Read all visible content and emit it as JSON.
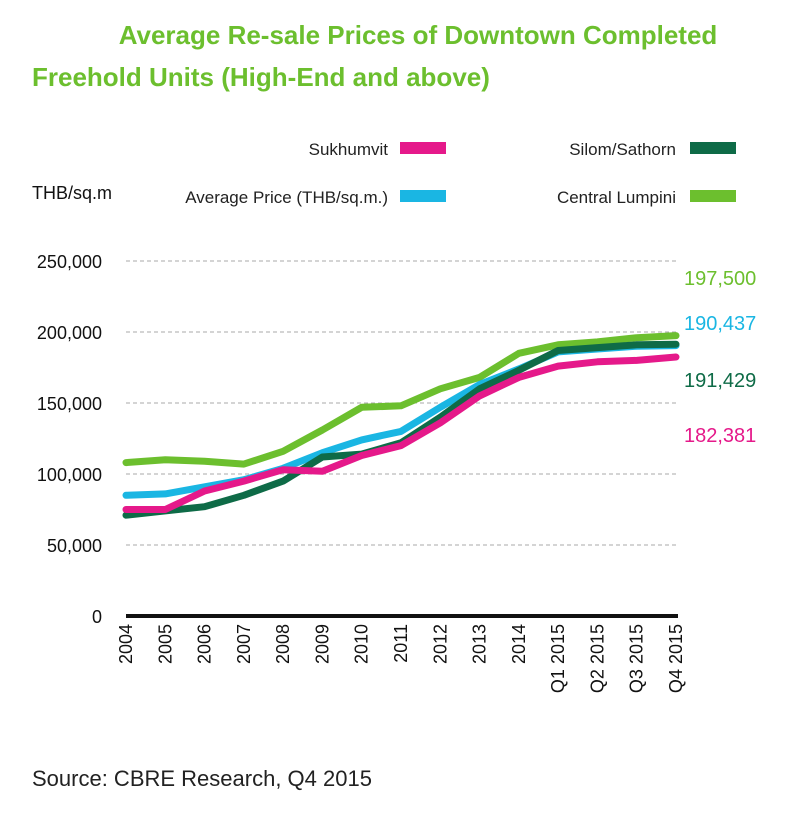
{
  "chart_data": {
    "type": "line",
    "title_line1": "Average Re-sale Prices of Downtown Completed",
    "title_line2": "Freehold Units (High-End and above)",
    "ylabel": "THB/sq.m",
    "source": "Source: CBRE Research, Q4 2015",
    "categories": [
      "2004",
      "2005",
      "2006",
      "2007",
      "2008",
      "2009",
      "2010",
      "2011",
      "2012",
      "2013",
      "2014",
      "Q1 2015",
      "Q2 2015",
      "Q3 2015",
      "Q4 2015"
    ],
    "ylim": [
      0,
      250000
    ],
    "yticks": [
      0,
      50000,
      100000,
      150000,
      200000,
      250000
    ],
    "ytick_labels": [
      "0",
      "50,000",
      "100,000",
      "150,000",
      "200,000",
      "250,000"
    ],
    "grid": "horizontal",
    "legend_placement": "top",
    "series": [
      {
        "name": "Central Lumpini",
        "color": "#6cbf2e",
        "values": [
          108000,
          110000,
          109000,
          107000,
          116000,
          131000,
          147000,
          148000,
          160000,
          168000,
          185000,
          191000,
          193000,
          196000,
          197500
        ],
        "end_label": "197,500"
      },
      {
        "name": "Average Price (THB/sq.m.)",
        "color": "#1ab6e3",
        "values": [
          85000,
          86000,
          91000,
          96000,
          104000,
          115000,
          124000,
          130000,
          147000,
          163000,
          174000,
          186000,
          188000,
          190000,
          190437
        ],
        "end_label": "190,437"
      },
      {
        "name": "Silom/Sathorn",
        "color": "#0e6b47",
        "values": [
          71000,
          74000,
          77000,
          85000,
          95000,
          112000,
          114000,
          122000,
          140000,
          160000,
          173000,
          187000,
          189000,
          191000,
          191429
        ],
        "end_label": "191,429"
      },
      {
        "name": "Sukhumvit",
        "color": "#e5198a",
        "values": [
          75000,
          75000,
          88000,
          95000,
          103000,
          102000,
          113000,
          120000,
          136000,
          155000,
          168000,
          176000,
          179000,
          180000,
          182381
        ],
        "end_label": "182,381"
      }
    ],
    "end_label_order": [
      "Central Lumpini",
      "Average Price (THB/sq.m.)",
      "Silom/Sathorn",
      "Sukhumvit"
    ]
  },
  "colors": {
    "title": "#6cbf2e",
    "grid": "#aaaaaa",
    "axis": "#111111"
  }
}
